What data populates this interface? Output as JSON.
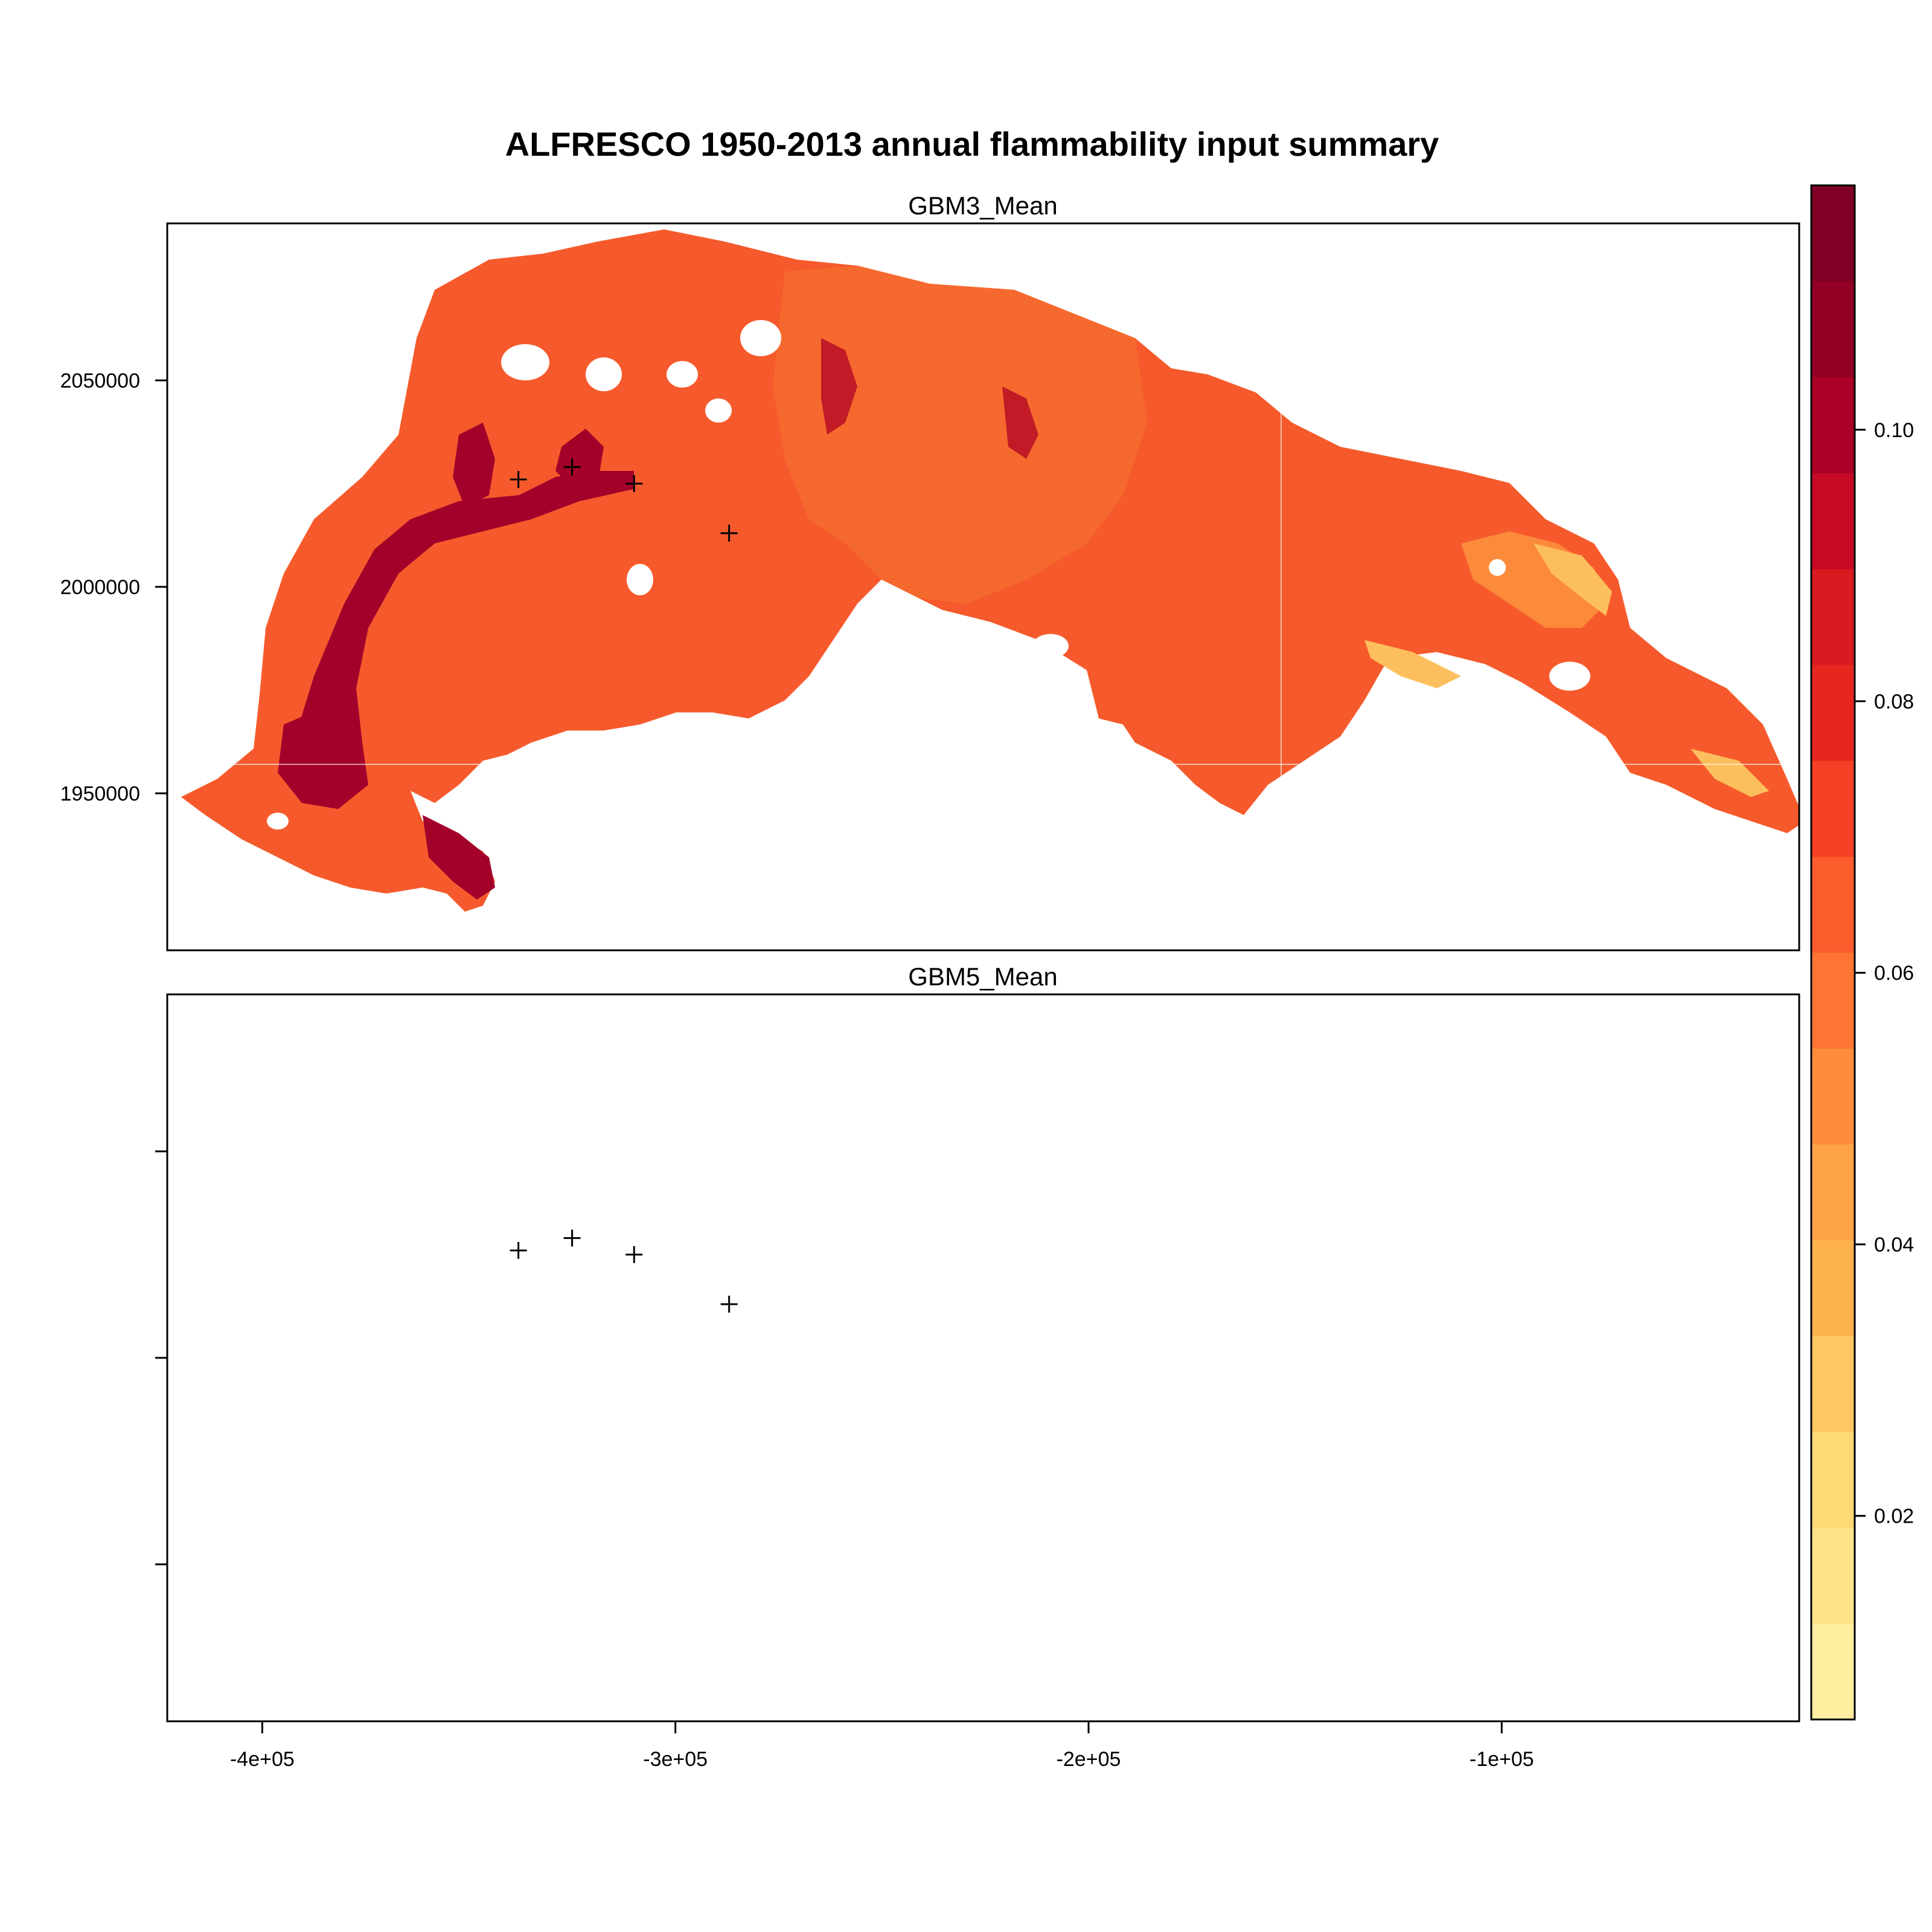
{
  "title": "ALFRESCO 1950-2013 annual flammability input summary",
  "panels": [
    {
      "name": "GBM3_Mean",
      "points": [
        [
          -338000,
          2026000
        ],
        [
          -325000,
          2029000
        ],
        [
          -310000,
          2025000
        ],
        [
          -287000,
          2013000
        ]
      ]
    },
    {
      "name": "GBM5_Mean",
      "points": [
        [
          -338000,
          2026000
        ],
        [
          -325000,
          2029000
        ],
        [
          -310000,
          2025000
        ],
        [
          -287000,
          2013000
        ]
      ]
    }
  ],
  "x_axis": {
    "range": [
      -423000,
      -28000
    ],
    "ticks": [
      -400000,
      -300000,
      -200000,
      -100000
    ],
    "tick_labels": [
      "-4e+05",
      "-3e+05",
      "-2e+05",
      "-1e+05"
    ]
  },
  "y_axis": {
    "range": [
      1912000,
      2088000
    ],
    "ticks": [
      1950000,
      2000000,
      2050000
    ],
    "tick_labels": [
      "1950000",
      "2000000",
      "2050000"
    ]
  },
  "colorbar": {
    "min": 0.005,
    "max": 0.118,
    "ticks": [
      0.02,
      0.04,
      0.06,
      0.08,
      0.1
    ],
    "tick_labels": [
      "0.02",
      "0.04",
      "0.06",
      "0.08",
      "0.10"
    ],
    "colors": [
      "#ffeda0",
      "#fee38b",
      "#fed976",
      "#fec762",
      "#feb24c",
      "#fea446",
      "#fd8d3c",
      "#fd7434",
      "#fc5b2c",
      "#f54026",
      "#e7271f",
      "#d81a21",
      "#c60a25",
      "#ac0026",
      "#920026",
      "#800026"
    ]
  },
  "map_colors": {
    "base": "#f65a2c",
    "mid": "#f6692e",
    "light": "#fb8a3a",
    "pale": "#fdbf5d",
    "dark": "#a3002a",
    "medium_dark": "#c21a26"
  }
}
